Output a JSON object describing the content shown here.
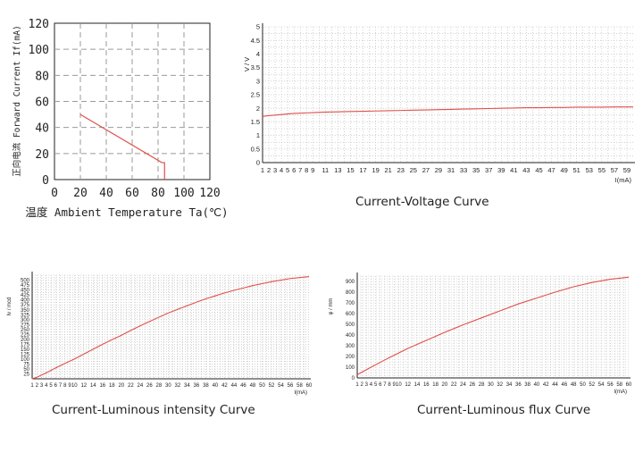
{
  "captions": {
    "voltage": "Current-Voltage Curve",
    "intensity": "Current-Luminous intensity Curve",
    "flux": "Current-Luminous flux Curve"
  },
  "colors": {
    "curve": "#e0504a",
    "grid": "#9a9a9a",
    "axis": "#222222"
  },
  "chart_data": [
    {
      "type": "line",
      "xlabel": "温度 Ambient Temperature Ta(℃)",
      "ylabel": "正向电流 Forward Current If(mA)",
      "xticks": [
        0,
        20,
        40,
        60,
        80,
        100,
        120
      ],
      "yticks": [
        0,
        20,
        40,
        60,
        80,
        100,
        120
      ],
      "xlim": [
        0,
        120
      ],
      "ylim": [
        0,
        120
      ],
      "grid": true,
      "series": [
        {
          "x": [
            20,
            83,
            85,
            85
          ],
          "y": [
            50,
            13,
            13,
            0
          ]
        }
      ]
    },
    {
      "type": "line",
      "ylabel": "V / V",
      "xlabel": "I(mA)",
      "xticks": [
        1,
        2,
        3,
        4,
        5,
        6,
        7,
        8,
        9,
        11,
        13,
        15,
        17,
        19,
        21,
        23,
        25,
        27,
        29,
        31,
        33,
        35,
        37,
        39,
        41,
        43,
        45,
        47,
        49,
        51,
        53,
        55,
        57,
        59
      ],
      "yticks": [
        0,
        0.5,
        1,
        1.5,
        2,
        2.5,
        3,
        3.5,
        4,
        4.5,
        5
      ],
      "xlim": [
        1,
        60
      ],
      "ylim": [
        0,
        5
      ],
      "grid": true,
      "series": [
        {
          "x": [
            1,
            2,
            3,
            4,
            5,
            6,
            7,
            8,
            9,
            11,
            13,
            15,
            17,
            19,
            21,
            23,
            25,
            27,
            29,
            31,
            33,
            35,
            37,
            39,
            41,
            43,
            45,
            47,
            49,
            51,
            53,
            55,
            57,
            59,
            60
          ],
          "y": [
            1.7,
            1.73,
            1.75,
            1.77,
            1.79,
            1.81,
            1.82,
            1.83,
            1.84,
            1.86,
            1.87,
            1.88,
            1.89,
            1.9,
            1.91,
            1.92,
            1.93,
            1.94,
            1.95,
            1.96,
            1.97,
            1.98,
            1.99,
            2.0,
            2.01,
            2.02,
            2.02,
            2.03,
            2.03,
            2.04,
            2.04,
            2.04,
            2.05,
            2.05,
            2.05
          ]
        }
      ]
    },
    {
      "type": "line",
      "ylabel": "Iv / mcd",
      "xlabel": "I(mA)",
      "xticks": [
        1,
        2,
        3,
        4,
        5,
        6,
        7,
        8,
        9,
        10,
        12,
        14,
        16,
        18,
        20,
        22,
        24,
        26,
        28,
        30,
        32,
        34,
        36,
        38,
        40,
        42,
        44,
        46,
        48,
        50,
        52,
        54,
        56,
        58,
        60
      ],
      "yticks": [
        25,
        50,
        75,
        100,
        125,
        150,
        175,
        200,
        225,
        250,
        275,
        300,
        325,
        350,
        375,
        400,
        425,
        450,
        475,
        500
      ],
      "xlim": [
        1,
        60
      ],
      "ylim": [
        0,
        525
      ],
      "grid": true,
      "series": [
        {
          "x": [
            1,
            2,
            4,
            6,
            8,
            10,
            12,
            14,
            16,
            18,
            20,
            22,
            24,
            26,
            28,
            30,
            32,
            34,
            36,
            38,
            40,
            42,
            44,
            46,
            48,
            50,
            52,
            54,
            56,
            58,
            60
          ],
          "y": [
            0,
            8,
            30,
            55,
            78,
            100,
            125,
            150,
            175,
            198,
            220,
            245,
            268,
            290,
            312,
            333,
            352,
            370,
            388,
            405,
            420,
            435,
            448,
            460,
            472,
            482,
            492,
            500,
            508,
            513,
            518
          ]
        }
      ]
    },
    {
      "type": "line",
      "ylabel": "φ / mm",
      "xlabel": "I(mA)",
      "xticks": [
        1,
        2,
        3,
        4,
        5,
        6,
        7,
        8,
        9,
        10,
        12,
        14,
        16,
        18,
        20,
        22,
        24,
        26,
        28,
        30,
        32,
        34,
        36,
        38,
        40,
        42,
        44,
        46,
        48,
        50,
        52,
        54,
        56,
        58,
        60
      ],
      "yticks": [
        0,
        100,
        200,
        300,
        400,
        500,
        600,
        700,
        800,
        900
      ],
      "xlim": [
        1,
        60
      ],
      "ylim": [
        0,
        950
      ],
      "grid": true,
      "series": [
        {
          "x": [
            1,
            4,
            8,
            12,
            16,
            20,
            24,
            28,
            32,
            36,
            40,
            44,
            48,
            52,
            56,
            58,
            60
          ],
          "y": [
            30,
            100,
            190,
            275,
            350,
            425,
            495,
            560,
            625,
            690,
            745,
            800,
            850,
            890,
            920,
            930,
            940
          ]
        }
      ]
    }
  ]
}
